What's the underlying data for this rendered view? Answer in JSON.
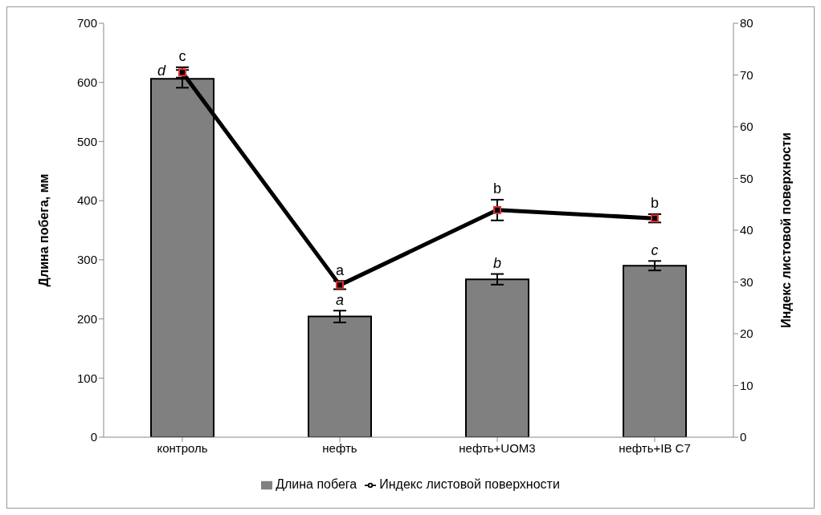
{
  "chart_data": {
    "type": "bar",
    "categories": [
      "контроль",
      "нефть",
      "нефть+UOM3",
      "нефть+IB C7"
    ],
    "series": [
      {
        "name": "Длина побега",
        "color": "#808080",
        "values": [
          606,
          204,
          267,
          290
        ],
        "errors": [
          15,
          10,
          9,
          8
        ]
      },
      {
        "name": "Индекс листовой поверхности",
        "type": "line",
        "axis": "y2",
        "color": "#000000",
        "values": [
          70.5,
          29.4,
          43.9,
          42.3
        ],
        "errors": [
          1,
          0.8,
          2,
          0.8
        ]
      }
    ],
    "ylabel": "Длина побега, мм",
    "y2label": "Индекс листовой поверхности",
    "ylim": [
      0,
      700
    ],
    "yticks": [
      0,
      100,
      200,
      300,
      400,
      500,
      600,
      700
    ],
    "y2lim": [
      0,
      80
    ],
    "y2ticks": [
      0,
      10,
      20,
      30,
      40,
      50,
      60,
      70,
      80
    ],
    "annotations": [
      {
        "text": "d",
        "x": "контроль",
        "y": 606
      },
      {
        "text": "a",
        "x": "нефть",
        "y": 204
      },
      {
        "text": "b",
        "x": "нефть+UOM3",
        "y": 267
      },
      {
        "text": "c",
        "x": "нефть+IB C7",
        "y": 290
      },
      {
        "text": "c",
        "x": "контроль",
        "y": 617
      },
      {
        "text": "a",
        "x": "нефть",
        "y": 257
      },
      {
        "text": "b",
        "x": "нефть+UOM3",
        "y": 384
      },
      {
        "text": "b",
        "x": "нефть+IB C7",
        "y": 370
      }
    ],
    "legend": "bottom",
    "grid": false,
    "marker": "square",
    "line_style": "solid"
  }
}
